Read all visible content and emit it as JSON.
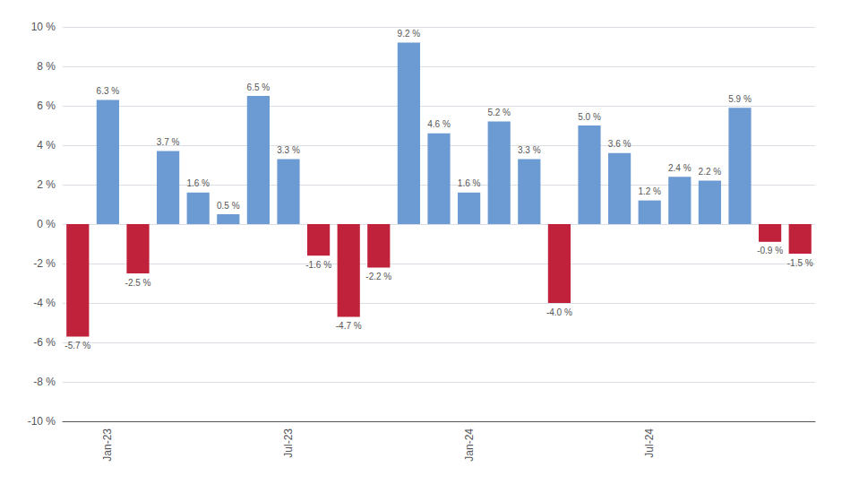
{
  "chart_data": {
    "type": "bar",
    "categories": [
      null,
      "Jan-23",
      null,
      null,
      null,
      null,
      null,
      "Jul-23",
      null,
      null,
      null,
      null,
      null,
      "Jan-24",
      null,
      null,
      null,
      null,
      null,
      "Jul-24",
      null,
      null,
      null,
      null,
      null
    ],
    "values": [
      -5.7,
      6.3,
      -2.5,
      3.7,
      1.6,
      0.5,
      6.5,
      3.3,
      -1.6,
      -4.7,
      -2.2,
      9.2,
      4.6,
      1.6,
      5.2,
      3.3,
      -4.0,
      5.0,
      3.6,
      1.2,
      2.4,
      2.2,
      5.9,
      -0.9,
      -1.5
    ],
    "value_labels": [
      "-5.7 %",
      "6.3 %",
      "-2.5 %",
      "3.7 %",
      "1.6 %",
      "0.5 %",
      "6.5 %",
      "3.3 %",
      "-1.6 %",
      "-4.7 %",
      "-2.2 %",
      "9.2 %",
      "4.6 %",
      "1.6 %",
      "5.2 %",
      "3.3 %",
      "-4.0 %",
      "5.0 %",
      "3.6 %",
      "1.2 %",
      "2.4 %",
      "2.2 %",
      "5.9 %",
      "-0.9 %",
      "-1.5 %"
    ],
    "colors": [
      "#c0213b",
      "#6b9bd2",
      "#c0213b",
      "#6b9bd2",
      "#6b9bd2",
      "#6b9bd2",
      "#6b9bd2",
      "#6b9bd2",
      "#c0213b",
      "#c0213b",
      "#c0213b",
      "#6b9bd2",
      "#6b9bd2",
      "#6b9bd2",
      "#6b9bd2",
      "#6b9bd2",
      "#c0213b",
      "#6b9bd2",
      "#6b9bd2",
      "#6b9bd2",
      "#6b9bd2",
      "#6b9bd2",
      "#6b9bd2",
      "#c0213b",
      "#c0213b"
    ],
    "ylim": [
      -10,
      10
    ],
    "yticks": [
      {
        "value": -10,
        "label": "-10 %"
      },
      {
        "value": -8,
        "label": "-8 %"
      },
      {
        "value": -6,
        "label": "-6 %"
      },
      {
        "value": -4,
        "label": "-4 %"
      },
      {
        "value": -2,
        "label": "-2 %"
      },
      {
        "value": 0,
        "label": "0 %"
      },
      {
        "value": 2,
        "label": "2 %"
      },
      {
        "value": 4,
        "label": "4 %"
      },
      {
        "value": 6,
        "label": "6 %"
      },
      {
        "value": 8,
        "label": "8 %"
      },
      {
        "value": 10,
        "label": "10 %"
      }
    ],
    "grid": true,
    "data_labels": true
  }
}
